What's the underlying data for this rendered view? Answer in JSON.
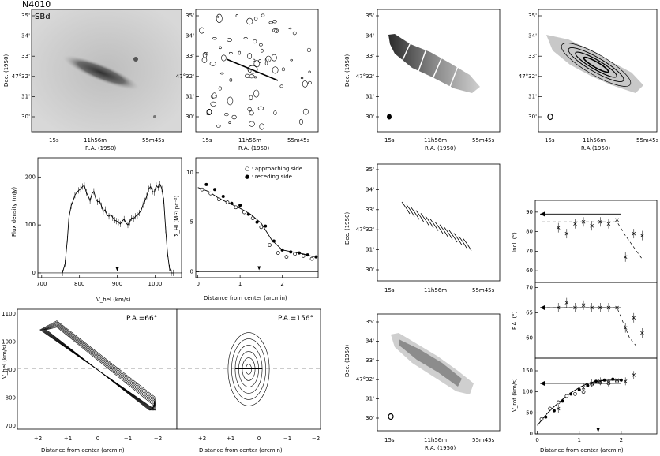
{
  "figure": {
    "galaxy": "N4010",
    "type_label": "SBd",
    "pa_labels": [
      "P.A.=66°",
      "P.A.=156°"
    ]
  },
  "axis_text": {
    "dec": "Dec. (1950)",
    "ra": "R.A. (1950)",
    "ra_alt": "R.A (1950)",
    "ra_ticks": [
      "15s",
      "11h56m",
      "55m45s"
    ],
    "dec_ticks": [
      "35'",
      "34'",
      "33'",
      "47°32'",
      "31'",
      "30'"
    ],
    "dist": "Distance from center (arcmin)",
    "flux_y": "Flux density (mJy)",
    "vhel_x": "V_hel (km/s)",
    "vhel_y": "V_hel (km/s)",
    "sigma_y": "Σ_HI (M☉ pc⁻²)",
    "incl_y": "Incl. (°)",
    "pa_y": "P.A. (°)",
    "vrot_y": "V_rot (km/s)"
  },
  "chart_data": [
    {
      "id": "hi-profile",
      "type": "line",
      "xlabel": "V_hel (km/s)",
      "ylabel": "Flux density (mJy)",
      "xlim": [
        690,
        1070
      ],
      "ylim": [
        -10,
        240
      ],
      "xticks": [
        700,
        800,
        900,
        1000
      ],
      "yticks": [
        0,
        100,
        200
      ],
      "x": [
        755,
        762,
        768,
        772,
        778,
        783,
        788,
        793,
        798,
        803,
        808,
        813,
        818,
        823,
        828,
        833,
        838,
        843,
        848,
        853,
        858,
        863,
        868,
        873,
        878,
        883,
        888,
        893,
        898,
        903,
        908,
        913,
        918,
        923,
        928,
        933,
        938,
        943,
        948,
        953,
        958,
        963,
        968,
        973,
        978,
        983,
        988,
        993,
        998,
        1003,
        1008,
        1013,
        1018,
        1023,
        1028,
        1033,
        1038,
        1043,
        1048
      ],
      "y": [
        0,
        20,
        70,
        115,
        140,
        150,
        162,
        168,
        172,
        175,
        180,
        182,
        168,
        160,
        150,
        165,
        170,
        155,
        148,
        150,
        140,
        128,
        132,
        120,
        118,
        122,
        115,
        110,
        108,
        106,
        102,
        108,
        112,
        104,
        100,
        106,
        115,
        112,
        118,
        120,
        125,
        130,
        142,
        150,
        160,
        175,
        180,
        170,
        168,
        182,
        178,
        185,
        175,
        150,
        90,
        40,
        10,
        0,
        0
      ],
      "arrow_x": 900
    },
    {
      "id": "surface-density",
      "type": "scatter",
      "xlabel": "Distance from center (arcmin)",
      "ylabel": "Σ_HI (M☉ pc⁻²)",
      "xlim": [
        -0.05,
        2.85
      ],
      "ylim": [
        -0.6,
        11.5
      ],
      "xticks": [
        0,
        1,
        2
      ],
      "yticks": [
        0,
        5,
        10
      ],
      "legend": [
        "○ : approaching side",
        "● : receding side"
      ],
      "approaching": {
        "x": [
          0.1,
          0.3,
          0.5,
          0.7,
          0.9,
          1.1,
          1.3,
          1.5,
          1.7,
          1.9,
          2.1,
          2.3,
          2.5,
          2.7
        ],
        "y": [
          8.3,
          7.9,
          7.3,
          7.0,
          6.5,
          6.0,
          5.4,
          4.5,
          2.7,
          1.9,
          1.5,
          1.8,
          1.6,
          1.3
        ]
      },
      "receding": {
        "x": [
          0.2,
          0.4,
          0.6,
          0.8,
          1.0,
          1.2,
          1.4,
          1.6,
          1.8,
          2.0,
          2.2,
          2.4,
          2.6,
          2.8
        ],
        "y": [
          8.8,
          8.3,
          7.6,
          6.9,
          6.7,
          5.8,
          5.0,
          4.6,
          3.1,
          2.2,
          2.0,
          1.9,
          1.7,
          1.5
        ]
      },
      "fit": {
        "x": [
          0,
          0.25,
          0.5,
          0.75,
          1.0,
          1.25,
          1.5,
          1.75,
          2.0,
          2.25,
          2.5,
          2.75
        ],
        "y": [
          8.5,
          8.1,
          7.4,
          6.9,
          6.4,
          5.8,
          4.9,
          3.2,
          2.2,
          2.0,
          1.8,
          1.5
        ]
      },
      "arrow_x": 1.45
    },
    {
      "id": "inclination",
      "type": "scatter",
      "ylabel": "Incl. (°)",
      "xlim": [
        -0.05,
        2.85
      ],
      "ylim": [
        54,
        96
      ],
      "yticks": [
        60,
        70,
        80,
        90
      ],
      "reference": 89,
      "x": [
        0.5,
        0.7,
        0.9,
        1.1,
        1.3,
        1.5,
        1.7,
        1.9,
        2.1,
        2.3,
        2.5
      ],
      "y": [
        82,
        79,
        84,
        85,
        83,
        85,
        84,
        86,
        67,
        79,
        78
      ],
      "model": {
        "x": [
          0.1,
          1.9,
          2.1,
          2.3,
          2.5
        ],
        "y": [
          85,
          85,
          78,
          72,
          66
        ]
      }
    },
    {
      "id": "position-angle",
      "type": "scatter",
      "ylabel": "P.A. (°)",
      "xlim": [
        -0.05,
        2.85
      ],
      "ylim": [
        56,
        71
      ],
      "yticks": [
        60,
        65,
        70
      ],
      "reference": 66,
      "x": [
        0.5,
        0.7,
        0.9,
        1.1,
        1.3,
        1.5,
        1.7,
        1.9,
        2.1,
        2.3,
        2.5
      ],
      "y": [
        66,
        67,
        66,
        66.5,
        66,
        66,
        66,
        66,
        62,
        64,
        61
      ],
      "model": {
        "x": [
          0.1,
          1.9,
          2.05,
          2.2,
          2.35
        ],
        "y": [
          66,
          66,
          63,
          60,
          58.5
        ]
      }
    },
    {
      "id": "rotation-curve",
      "type": "scatter",
      "xlabel": "Distance from center (arcmin)",
      "ylabel": "V_rot (km/s)",
      "xlim": [
        -0.05,
        2.85
      ],
      "ylim": [
        0,
        180
      ],
      "xticks": [
        0,
        1,
        2
      ],
      "yticks": [
        0,
        50,
        100,
        150
      ],
      "reference": 120,
      "approaching": {
        "x": [
          0.1,
          0.3,
          0.5,
          0.7,
          0.9,
          1.1,
          1.3,
          1.5,
          1.7,
          1.9
        ],
        "y": [
          35,
          60,
          75,
          90,
          95,
          100,
          118,
          122,
          120,
          125
        ]
      },
      "receding": {
        "x": [
          0.2,
          0.4,
          0.6,
          0.8,
          1.0,
          1.2,
          1.4,
          1.6,
          1.8,
          2.0
        ],
        "y": [
          40,
          55,
          78,
          95,
          105,
          115,
          125,
          128,
          130,
          128
        ]
      },
      "crosses": {
        "x": [
          0.5,
          1.1,
          1.3,
          1.5,
          1.7,
          1.9,
          2.1,
          2.3
        ],
        "y": [
          60,
          110,
          120,
          125,
          122,
          128,
          125,
          140
        ]
      },
      "fit": {
        "x": [
          0,
          0.2,
          0.4,
          0.6,
          0.8,
          1.0,
          1.2,
          1.4,
          1.6,
          1.8,
          2.0
        ],
        "y": [
          20,
          45,
          65,
          82,
          98,
          110,
          120,
          125,
          127,
          128,
          128
        ]
      },
      "arrow_x": 1.45
    }
  ]
}
